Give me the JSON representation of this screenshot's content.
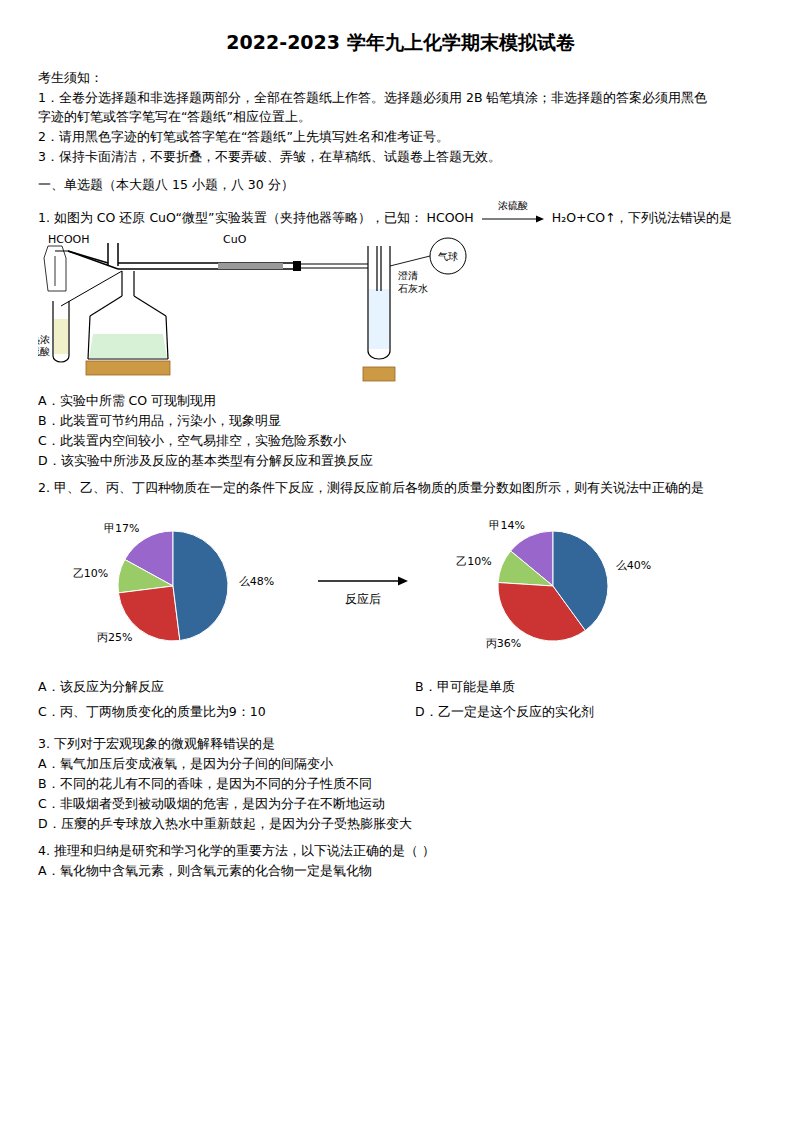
{
  "page": {
    "title": "2022-2023 学年九上化学期末模拟试卷",
    "annotations": [
      "考生须知：",
      "1．全卷分选择题和非选择题两部分，全部在答题纸上作答。选择题必须用 2B 铅笔填涂；非选择题的答案必须用黑色",
      "字迹的钉笔或答字笔写在“答题纸”相应位置上。",
      "2．请用黑色字迹的钉笔或答字笔在“答题纸”上先填写姓名和准考证号。",
      "3．保持卡面清洁，不要折叠，不要弄破、弄皱，在草稿纸、试题卷上答题无效。",
      "一、单选题（本大题八 15 小题，八 30 分）",
      "1. 如图为 CO 还原 CuO“微型”实验装置（夹持他器等略），已知： HCOOH",
      "浓硫酸",
      "H₂O+CO↑，下列说法错误的是",
      "HCOOH",
      "CuO",
      "澄清",
      "石灰水",
      "气球",
      "热浓",
      "硫酸",
      "A．实验中所需 CO 可现制现用",
      "B．此装置可节约用品，污染小，现象明显",
      "C．此装置内空间较小，空气易排空，实验危险系数小",
      "D．该实验中所涉及反应的基本类型有分解反应和置换反应",
      "2. 甲、乙、丙、丁四种物质在一定的条件下反应，测得反应前后各物质的质量分数如图所示，则有关说法中正确的是",
      "反应后",
      "A．该反应为分解反应",
      "B．甲可能是单质",
      "C．丙、丁两物质变化的质量比为9：10",
      "D．乙一定是这个反应的实化剂",
      "3. 下列对于宏观现象的微观解释错误的是",
      "A．氧气加压后变成液氧，是因为分子间的间隔变小",
      "B．不同的花儿有不同的香味，是因为不同的分子性质不同",
      "C．非吸烟者受到被动吸烟的危害，是因为分子在不断地运动",
      "D．压瘿的乒专球放入热水中重新鼓起，是因为分子受热膨胀变大",
      "4. 推理和归纳是研究和学习化学的重要方法，以下说法正确的是（  ）",
      "A．氧化物中含氧元素，则含氧元素的化合物一定是氧化物"
    ]
  },
  "chart_data": [
    {
      "type": "pie",
      "values": [
        17,
        10,
        25,
        48
      ],
      "value_labels": [
        "甲17%",
        "乙10%",
        "丙25%",
        "么48%"
      ],
      "colors": [
        "#9966CC",
        "#99CC66",
        "#CC3333",
        "#336699"
      ],
      "data_labels": true
    },
    {
      "type": "pie",
      "values": [
        14,
        10,
        36,
        40
      ],
      "value_labels": [
        "甲14%",
        "乙10%",
        "丙36%",
        "么40%"
      ],
      "colors": [
        "#9966CC",
        "#99CC66",
        "#CC3333",
        "#336699"
      ],
      "data_labels": true
    }
  ]
}
